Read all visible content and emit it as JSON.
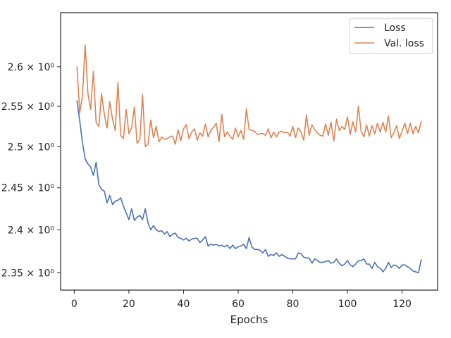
{
  "chart_data": {
    "type": "line",
    "title": "",
    "xlabel": "Epochs",
    "ylabel": "",
    "xlim": [
      -5,
      133
    ],
    "ylim": [
      2.33,
      2.67
    ],
    "y_scale": "log",
    "grid": false,
    "legend_placement": "top-right",
    "x_ticks": [
      0,
      20,
      40,
      60,
      80,
      100,
      120
    ],
    "x_tick_labels": [
      "0",
      "20",
      "40",
      "60",
      "80",
      "100",
      "120"
    ],
    "y_ticks": [
      2.35,
      2.4,
      2.45,
      2.5,
      2.55,
      2.6
    ],
    "y_tick_labels": [
      "2.35 × 10⁰",
      "2.4 × 10⁰",
      "2.45 × 10⁰",
      "2.5 × 10⁰",
      "2.55 × 10⁰",
      "2.6 × 10⁰"
    ],
    "x": [
      1,
      2,
      3,
      4,
      5,
      6,
      7,
      8,
      9,
      10,
      11,
      12,
      13,
      14,
      15,
      16,
      17,
      18,
      19,
      20,
      21,
      22,
      23,
      24,
      25,
      26,
      27,
      28,
      29,
      30,
      31,
      32,
      33,
      34,
      35,
      36,
      37,
      38,
      39,
      40,
      41,
      42,
      43,
      44,
      45,
      46,
      47,
      48,
      49,
      50,
      51,
      52,
      53,
      54,
      55,
      56,
      57,
      58,
      59,
      60,
      61,
      62,
      63,
      64,
      65,
      66,
      67,
      68,
      69,
      70,
      71,
      72,
      73,
      74,
      75,
      76,
      77,
      78,
      79,
      80,
      81,
      82,
      83,
      84,
      85,
      86,
      87,
      88,
      89,
      90,
      91,
      92,
      93,
      94,
      95,
      96,
      97,
      98,
      99,
      100,
      101,
      102,
      103,
      104,
      105,
      106,
      107,
      108,
      109,
      110,
      111,
      112,
      113,
      114,
      115,
      116,
      117,
      118,
      119,
      120,
      121,
      122,
      123,
      124,
      125,
      126,
      127
    ],
    "series": [
      {
        "name": "Loss",
        "color": "#4c72b0",
        "values": [
          2.557,
          2.532,
          2.505,
          2.485,
          2.479,
          2.475,
          2.465,
          2.481,
          2.454,
          2.448,
          2.446,
          2.432,
          2.441,
          2.43,
          2.434,
          2.435,
          2.438,
          2.428,
          2.42,
          2.412,
          2.425,
          2.411,
          2.415,
          2.417,
          2.412,
          2.425,
          2.408,
          2.4,
          2.405,
          2.4,
          2.398,
          2.399,
          2.395,
          2.398,
          2.392,
          2.395,
          2.396,
          2.391,
          2.39,
          2.388,
          2.39,
          2.387,
          2.389,
          2.39,
          2.39,
          2.385,
          2.388,
          2.392,
          2.381,
          2.383,
          2.382,
          2.383,
          2.381,
          2.382,
          2.38,
          2.382,
          2.378,
          2.382,
          2.378,
          2.38,
          2.381,
          2.383,
          2.378,
          2.391,
          2.38,
          2.377,
          2.377,
          2.376,
          2.373,
          2.377,
          2.369,
          2.371,
          2.37,
          2.373,
          2.369,
          2.371,
          2.369,
          2.367,
          2.366,
          2.366,
          2.366,
          2.373,
          2.372,
          2.368,
          2.367,
          2.367,
          2.361,
          2.366,
          2.364,
          2.362,
          2.362,
          2.363,
          2.364,
          2.361,
          2.362,
          2.366,
          2.361,
          2.358,
          2.36,
          2.364,
          2.359,
          2.357,
          2.36,
          2.364,
          2.364,
          2.366,
          2.36,
          2.36,
          2.355,
          2.362,
          2.357,
          2.355,
          2.351,
          2.355,
          2.362,
          2.356,
          2.359,
          2.358,
          2.355,
          2.359,
          2.359,
          2.357,
          2.355,
          2.352,
          2.351,
          2.35,
          2.365
        ]
      },
      {
        "name": "Val. loss",
        "color": "#dd8452",
        "values": [
          2.6,
          2.542,
          2.563,
          2.628,
          2.566,
          2.546,
          2.594,
          2.53,
          2.525,
          2.566,
          2.54,
          2.523,
          2.556,
          2.534,
          2.52,
          2.58,
          2.514,
          2.51,
          2.546,
          2.516,
          2.523,
          2.549,
          2.504,
          2.509,
          2.565,
          2.5,
          2.503,
          2.533,
          2.511,
          2.525,
          2.506,
          2.512,
          2.509,
          2.51,
          2.512,
          2.513,
          2.503,
          2.521,
          2.507,
          2.522,
          2.527,
          2.51,
          2.518,
          2.522,
          2.508,
          2.517,
          2.513,
          2.528,
          2.512,
          2.52,
          2.524,
          2.529,
          2.506,
          2.54,
          2.512,
          2.518,
          2.513,
          2.509,
          2.523,
          2.512,
          2.52,
          2.509,
          2.547,
          2.521,
          2.52,
          2.519,
          2.515,
          2.516,
          2.516,
          2.514,
          2.522,
          2.511,
          2.518,
          2.512,
          2.518,
          2.519,
          2.517,
          2.518,
          2.513,
          2.525,
          2.511,
          2.523,
          2.518,
          2.508,
          2.539,
          2.514,
          2.527,
          2.521,
          2.517,
          2.514,
          2.513,
          2.528,
          2.514,
          2.53,
          2.507,
          2.534,
          2.52,
          2.525,
          2.521,
          2.537,
          2.515,
          2.531,
          2.518,
          2.55,
          2.519,
          2.512,
          2.527,
          2.513,
          2.526,
          2.516,
          2.529,
          2.518,
          2.53,
          2.518,
          2.538,
          2.511,
          2.517,
          2.526,
          2.51,
          2.519,
          2.529,
          2.516,
          2.529,
          2.516,
          2.525,
          2.517,
          2.531
        ]
      }
    ]
  }
}
